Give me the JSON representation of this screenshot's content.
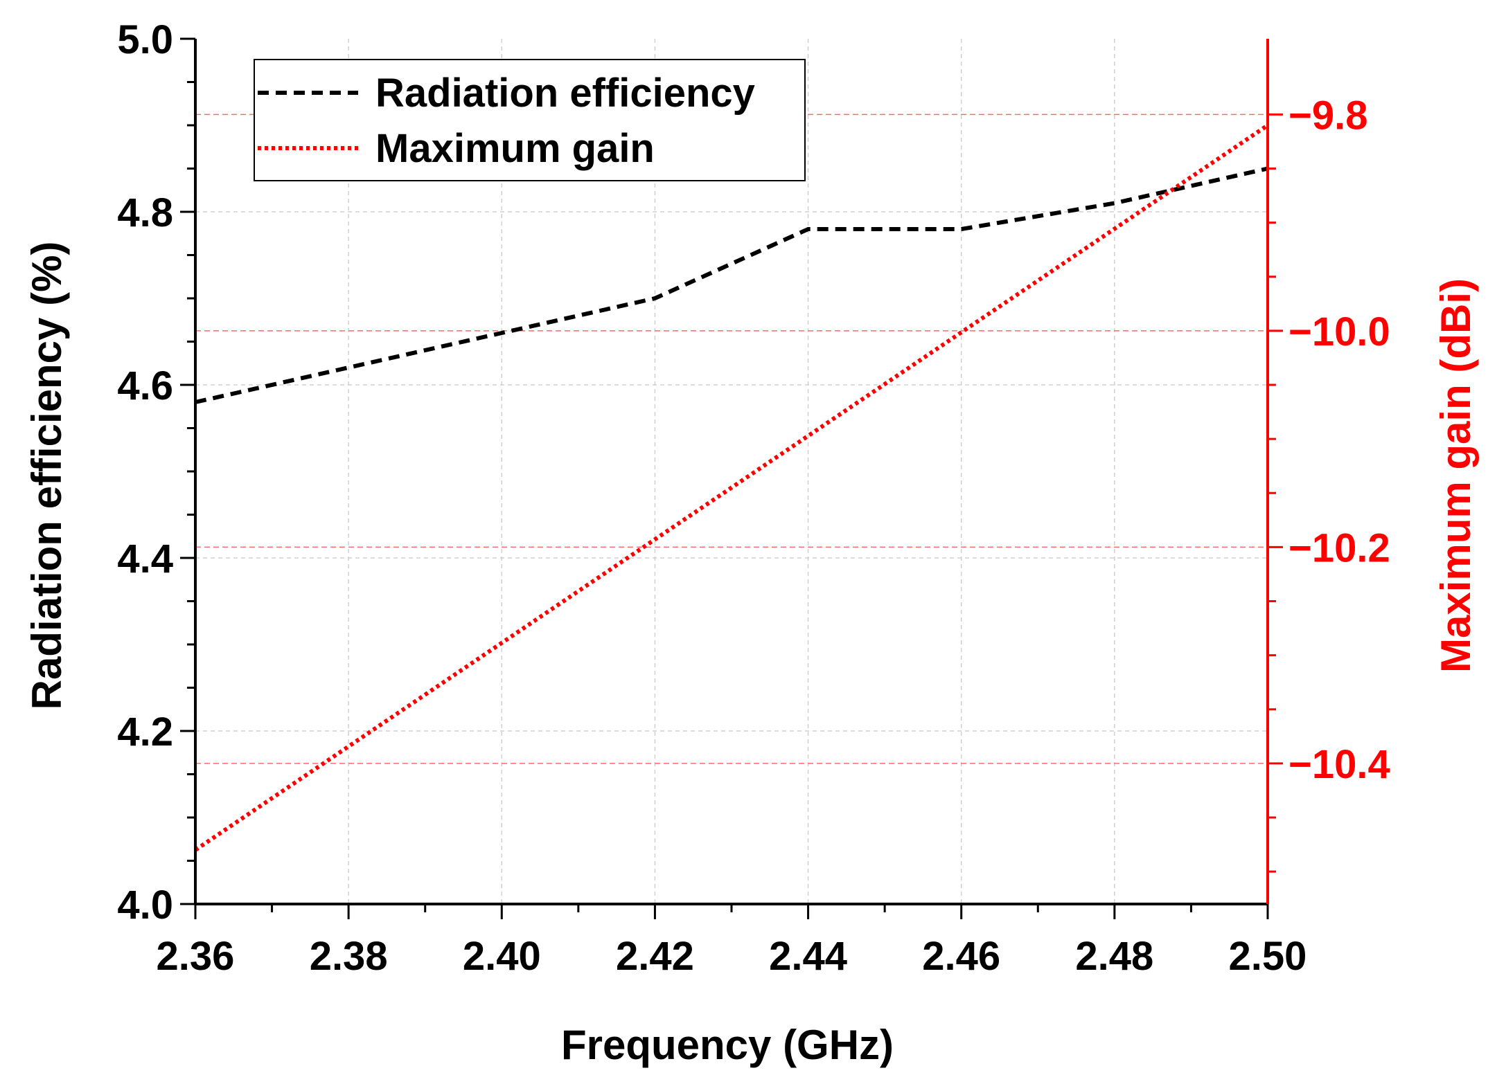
{
  "chart_data": {
    "type": "line",
    "xlabel": "Frequency (GHz)",
    "ylabel_left": "Radiation efficiency (%)",
    "ylabel_right": "Maximum gain (dBi)",
    "xlim": [
      2.36,
      2.5
    ],
    "ylim_left": [
      4.0,
      5.0
    ],
    "ylim_right": [
      -10.53,
      -9.73
    ],
    "x_ticks": [
      "2.36",
      "2.38",
      "2.40",
      "2.42",
      "2.44",
      "2.46",
      "2.48",
      "2.50"
    ],
    "y_left_ticks": [
      "4.0",
      "4.2",
      "4.4",
      "4.6",
      "4.8",
      "5.0"
    ],
    "y_right_ticks": [
      "-10.4",
      "-10.2",
      "-10.0",
      "-9.8"
    ],
    "y_right_tick_labels": [
      "−10.4",
      "−10.2",
      "−10.0",
      "−9.8"
    ],
    "grid": true,
    "legend_position": "top-left",
    "colors": {
      "efficiency": "#000000",
      "gain": "#ff0000",
      "right_axis": "#ff0000"
    },
    "series": [
      {
        "name": "Radiation efficiency",
        "axis": "left",
        "style": "dashed",
        "x": [
          2.36,
          2.38,
          2.4,
          2.42,
          2.44,
          2.46,
          2.48,
          2.5
        ],
        "y": [
          4.58,
          4.62,
          4.66,
          4.7,
          4.78,
          4.78,
          4.81,
          4.85
        ]
      },
      {
        "name": "Maximum gain",
        "axis": "right",
        "style": "dotted",
        "x": [
          2.36,
          2.5
        ],
        "y": [
          -10.48,
          -9.81
        ]
      }
    ]
  }
}
